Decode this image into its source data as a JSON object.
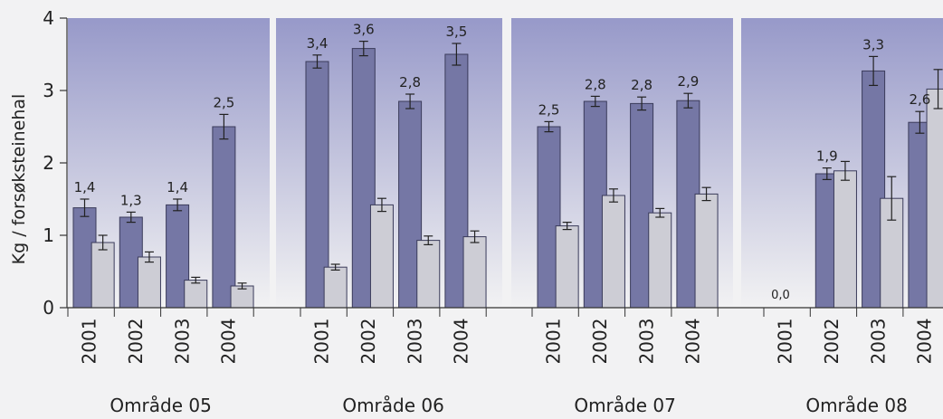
{
  "chart_data": {
    "type": "bar",
    "ylabel": "Kg / forsøksteinehal",
    "ylim": [
      0,
      4
    ],
    "yticks": [
      "0",
      "1",
      "2",
      "3",
      "4"
    ],
    "grid": false,
    "colors": {
      "dark": "#7577a5",
      "light": "#cdcdd5",
      "panel_top": "#9799c9",
      "panel_bottom": "#f2f2f3"
    },
    "groups": [
      {
        "name": "Område 05",
        "years": [
          "2001",
          "2002",
          "2003",
          "2004"
        ],
        "dark": [
          1.38,
          1.25,
          1.42,
          2.5
        ],
        "dark_err": [
          0.12,
          0.07,
          0.08,
          0.17
        ],
        "dark_labels": [
          "1,4",
          "1,3",
          "1,4",
          "2,5"
        ],
        "light": [
          0.9,
          0.7,
          0.38,
          0.3
        ],
        "light_err": [
          0.1,
          0.07,
          0.04,
          0.04
        ]
      },
      {
        "name": "Område 06",
        "years": [
          "2001",
          "2002",
          "2003",
          "2004"
        ],
        "dark": [
          3.4,
          3.58,
          2.85,
          3.5
        ],
        "dark_err": [
          0.09,
          0.1,
          0.1,
          0.15
        ],
        "dark_labels": [
          "3,4",
          "3,6",
          "2,8",
          "3,5"
        ],
        "light": [
          0.56,
          1.42,
          0.93,
          0.98
        ],
        "light_err": [
          0.04,
          0.09,
          0.06,
          0.08
        ]
      },
      {
        "name": "Område 07",
        "years": [
          "2001",
          "2002",
          "2003",
          "2004"
        ],
        "dark": [
          2.5,
          2.85,
          2.82,
          2.86
        ],
        "dark_err": [
          0.07,
          0.07,
          0.09,
          0.1
        ],
        "dark_labels": [
          "2,5",
          "2,8",
          "2,8",
          "2,9"
        ],
        "light": [
          1.13,
          1.55,
          1.31,
          1.57
        ],
        "light_err": [
          0.05,
          0.09,
          0.06,
          0.09
        ]
      },
      {
        "name": "Område 08",
        "years": [
          "2001",
          "2002",
          "2003",
          "2004"
        ],
        "dark": [
          0.0,
          1.85,
          3.27,
          2.56
        ],
        "dark_err": [
          0,
          0.08,
          0.2,
          0.15
        ],
        "dark_labels": [
          "0,0",
          "1,9",
          "3,3",
          "2,6"
        ],
        "light": [
          null,
          1.89,
          1.51,
          3.02
        ],
        "light_err": [
          0,
          0.13,
          0.3,
          0.27
        ]
      }
    ]
  }
}
